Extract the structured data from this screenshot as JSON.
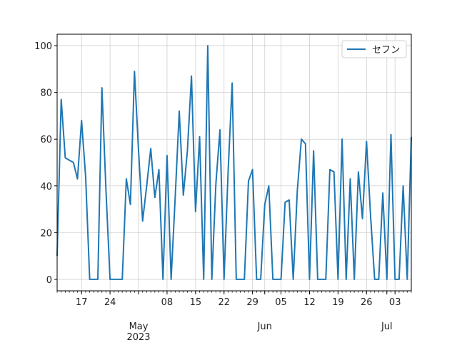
{
  "chart_data": {
    "type": "line",
    "x": [
      "2023-04-11",
      "2023-04-12",
      "2023-04-13",
      "2023-04-14",
      "2023-04-15",
      "2023-04-16",
      "2023-04-17",
      "2023-04-18",
      "2023-04-19",
      "2023-04-20",
      "2023-04-21",
      "2023-04-22",
      "2023-04-23",
      "2023-04-24",
      "2023-04-25",
      "2023-04-26",
      "2023-04-27",
      "2023-04-28",
      "2023-04-29",
      "2023-04-30",
      "2023-05-01",
      "2023-05-02",
      "2023-05-03",
      "2023-05-04",
      "2023-05-05",
      "2023-05-06",
      "2023-05-07",
      "2023-05-08",
      "2023-05-09",
      "2023-05-10",
      "2023-05-11",
      "2023-05-12",
      "2023-05-13",
      "2023-05-14",
      "2023-05-15",
      "2023-05-16",
      "2023-05-17",
      "2023-05-18",
      "2023-05-19",
      "2023-05-20",
      "2023-05-21",
      "2023-05-22",
      "2023-05-23",
      "2023-05-24",
      "2023-05-25",
      "2023-05-26",
      "2023-05-27",
      "2023-05-28",
      "2023-05-29",
      "2023-05-30",
      "2023-05-31",
      "2023-06-01",
      "2023-06-02",
      "2023-06-03",
      "2023-06-04",
      "2023-06-05",
      "2023-06-06",
      "2023-06-07",
      "2023-06-08",
      "2023-06-09",
      "2023-06-10",
      "2023-06-11",
      "2023-06-12",
      "2023-06-13",
      "2023-06-14",
      "2023-06-15",
      "2023-06-16",
      "2023-06-17",
      "2023-06-18",
      "2023-06-19",
      "2023-06-20",
      "2023-06-21",
      "2023-06-22",
      "2023-06-23",
      "2023-06-24",
      "2023-06-25",
      "2023-06-26",
      "2023-06-27",
      "2023-06-28",
      "2023-06-29",
      "2023-06-30",
      "2023-07-01",
      "2023-07-02",
      "2023-07-03",
      "2023-07-04",
      "2023-07-05",
      "2023-07-06",
      "2023-07-07"
    ],
    "series": [
      {
        "name": "セフン",
        "color": "#1f77b4",
        "values": [
          10,
          77,
          52,
          51,
          50,
          43,
          68,
          44,
          0,
          0,
          0,
          82,
          38,
          0,
          0,
          0,
          0,
          43,
          32,
          89,
          55,
          25,
          40,
          56,
          35,
          47,
          0,
          53,
          0,
          35,
          72,
          36,
          55,
          87,
          29,
          61,
          0,
          100,
          0,
          41,
          64,
          0,
          46,
          84,
          0,
          0,
          0,
          42,
          47,
          0,
          0,
          32,
          40,
          0,
          0,
          0,
          33,
          34,
          0,
          38,
          60,
          58,
          0,
          55,
          0,
          0,
          0,
          47,
          46,
          0,
          60,
          0,
          43,
          0,
          46,
          26,
          59,
          27,
          0,
          0,
          37,
          0,
          62,
          0,
          0,
          40,
          0,
          61
        ]
      }
    ],
    "xlim": [
      "2023-04-11",
      "2023-07-07"
    ],
    "xticks": [
      {
        "value": "2023-04-17",
        "label": "17"
      },
      {
        "value": "2023-04-24",
        "label": "24"
      },
      {
        "value": "2023-05-01",
        "label": [
          "May",
          "2023"
        ]
      },
      {
        "value": "2023-05-08",
        "label": "08"
      },
      {
        "value": "2023-05-15",
        "label": "15"
      },
      {
        "value": "2023-05-22",
        "label": "22"
      },
      {
        "value": "2023-05-29",
        "label": "29"
      },
      {
        "value": "2023-06-01",
        "label": "Jun"
      },
      {
        "value": "2023-06-05",
        "label": "05"
      },
      {
        "value": "2023-06-12",
        "label": "12"
      },
      {
        "value": "2023-06-19",
        "label": "19"
      },
      {
        "value": "2023-06-26",
        "label": "26"
      },
      {
        "value": "2023-07-01",
        "label": "Jul"
      },
      {
        "value": "2023-07-03",
        "label": "03"
      }
    ],
    "ylim": [
      -4.9,
      104.9
    ],
    "yticks": [
      0,
      20,
      40,
      60,
      80,
      100
    ],
    "grid": true,
    "legend": "upper right"
  }
}
